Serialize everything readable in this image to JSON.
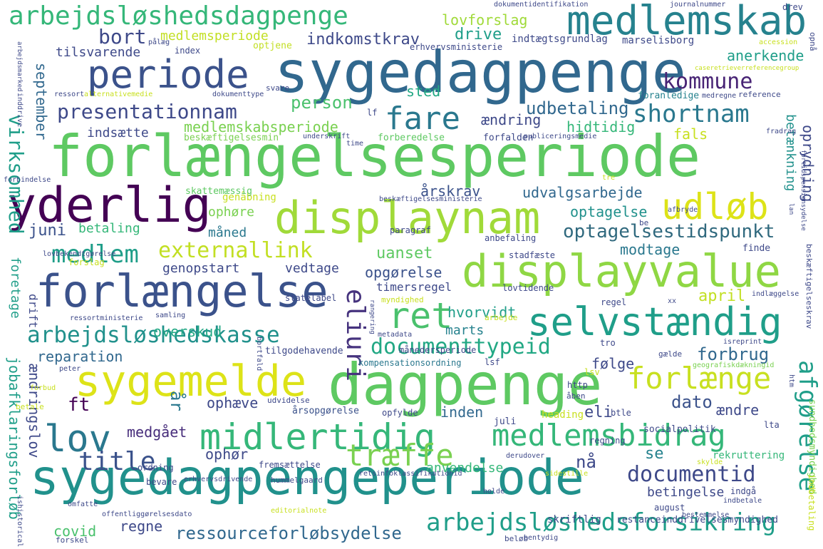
{
  "words": [
    {
      "text": "forlængelsesperiode",
      "color": "#5ec962"
    },
    {
      "text": "sygedagpenge",
      "color": "#31688e"
    },
    {
      "text": "sygedagpengeperiode",
      "color": "#21918c"
    },
    {
      "text": "dagpenge",
      "color": "#5ec962"
    },
    {
      "text": "displaynam",
      "color": "#a0da39"
    },
    {
      "text": "displayvalue",
      "color": "#8fd744"
    },
    {
      "text": "forlængelse",
      "color": "#3b528b"
    },
    {
      "text": "yderlig",
      "color": "#440154"
    },
    {
      "text": "medlemskab",
      "color": "#26828e"
    },
    {
      "text": "periode",
      "color": "#3b528b"
    },
    {
      "text": "sygemelde",
      "color": "#dde318"
    },
    {
      "text": "selvstændig",
      "color": "#1f9e89"
    },
    {
      "text": "midlertidig",
      "color": "#35b779"
    },
    {
      "text": "lov",
      "color": "#2a788e"
    },
    {
      "text": "medlemsbidrag",
      "color": "#35b779"
    },
    {
      "text": "ret",
      "color": "#4ac16d"
    },
    {
      "text": "udløb",
      "color": "#dde318"
    },
    {
      "text": "fare",
      "color": "#2a788e"
    },
    {
      "text": "arbejdsløshedsdagpenge",
      "color": "#35b779"
    },
    {
      "text": "arbejdsløshedsforsikring",
      "color": "#1f9e89"
    },
    {
      "text": "forlænge",
      "color": "#c8e020"
    },
    {
      "text": "arbejdsløshedskasse",
      "color": "#21918c"
    },
    {
      "text": "externallink",
      "color": "#c2df23"
    },
    {
      "text": "medlem",
      "color": "#1f9e89"
    },
    {
      "text": "documenttypeid",
      "color": "#22a884"
    },
    {
      "text": "kommune",
      "color": "#482475"
    },
    {
      "text": "shortnam",
      "color": "#2a788e"
    },
    {
      "text": "presentationnam",
      "color": "#3e4989"
    },
    {
      "text": "optagelsestidspunkt",
      "color": "#30697e"
    },
    {
      "text": "træffe",
      "color": "#7ad151"
    },
    {
      "text": "title",
      "color": "#3b528b"
    },
    {
      "text": "documentid",
      "color": "#3e4989"
    },
    {
      "text": "ressourceforløbsydelse",
      "color": "#31688e"
    },
    {
      "text": "eliuri",
      "color": "#46337e"
    },
    {
      "text": "afgørelse",
      "color": "#1f9e89"
    },
    {
      "text": "bort",
      "color": "#3e4989"
    },
    {
      "text": "medlemsperiode",
      "color": "#c2df23"
    },
    {
      "text": "lovforslag",
      "color": "#a0da39"
    },
    {
      "text": "indkomstkrav",
      "color": "#3e4989"
    },
    {
      "text": "drive",
      "color": "#1f9e89"
    },
    {
      "text": "tilsvarende",
      "color": "#3e4989"
    },
    {
      "text": "udbetaling",
      "color": "#31688e"
    },
    {
      "text": "person",
      "color": "#4ac16d"
    },
    {
      "text": "sted",
      "color": "#22a884"
    },
    {
      "text": "ændring",
      "color": "#3e4989"
    },
    {
      "text": "hidtidig",
      "color": "#35b779"
    },
    {
      "text": "indsætte",
      "color": "#3e4989"
    },
    {
      "text": "medlemskabsperiode",
      "color": "#7ad151"
    },
    {
      "text": "september",
      "color": "#31688e"
    },
    {
      "text": "virksomhed",
      "color": "#1f9e89"
    },
    {
      "text": "juni",
      "color": "#3b528b"
    },
    {
      "text": "betaling",
      "color": "#35b779"
    },
    {
      "text": "ophøre",
      "color": "#7ad151"
    },
    {
      "text": "måned",
      "color": "#2a788e"
    },
    {
      "text": "uanset",
      "color": "#5ec962"
    },
    {
      "text": "årskrav",
      "color": "#3b528b"
    },
    {
      "text": "udvalgsarbejde",
      "color": "#31688e"
    },
    {
      "text": "optagelse",
      "color": "#21918c"
    },
    {
      "text": "modtage",
      "color": "#2a788e"
    },
    {
      "text": "genopstart",
      "color": "#3e4989"
    },
    {
      "text": "vedtage",
      "color": "#3e4989"
    },
    {
      "text": "opgørelse",
      "color": "#3b528b"
    },
    {
      "text": "timersregel",
      "color": "#3e4989"
    },
    {
      "text": "hvorvidt",
      "color": "#1f9e89"
    },
    {
      "text": "april",
      "color": "#c2df23"
    },
    {
      "text": "marts",
      "color": "#26828e"
    },
    {
      "text": "overskud",
      "color": "#22a884"
    },
    {
      "text": "reparation",
      "color": "#31688e"
    },
    {
      "text": "forbrug",
      "color": "#31688e"
    },
    {
      "text": "følge",
      "color": "#3e4989"
    },
    {
      "text": "dato",
      "color": "#3b528b"
    },
    {
      "text": "ændre",
      "color": "#3e4989"
    },
    {
      "text": "eli",
      "color": "#3e4989"
    },
    {
      "text": "ft",
      "color": "#440154"
    },
    {
      "text": "år",
      "color": "#2a788e"
    },
    {
      "text": "ophæve",
      "color": "#3e4989"
    },
    {
      "text": "inden",
      "color": "#31688e"
    },
    {
      "text": "medgået",
      "color": "#472d7b"
    },
    {
      "text": "nå",
      "color": "#3e4989"
    },
    {
      "text": "se",
      "color": "#26828e"
    },
    {
      "text": "ophør",
      "color": "#3e4989"
    },
    {
      "text": "regne",
      "color": "#3e4989"
    },
    {
      "text": "anvendelse",
      "color": "#35b779"
    },
    {
      "text": "betingelse",
      "color": "#3e4989"
    },
    {
      "text": "covid",
      "color": "#4ac16d"
    },
    {
      "text": "fals",
      "color": "#c8e020"
    },
    {
      "text": "oprydning",
      "color": "#3e4989"
    },
    {
      "text": "betænkning",
      "color": "#21918c"
    },
    {
      "text": "anerkende",
      "color": "#1f9e89"
    },
    {
      "text": "jobafklaringsforløb",
      "color": "#1f9e89"
    },
    {
      "text": "ændringslov",
      "color": "#3e4989"
    },
    {
      "text": "foretage",
      "color": "#1f9e89"
    },
    {
      "text": "drift",
      "color": "#3e4989"
    },
    {
      "text": "genåbning",
      "color": "#c8e020"
    },
    {
      "text": "skattemæssig",
      "color": "#5ec962"
    },
    {
      "text": "beskæftigelsesmin",
      "color": "#7ad151"
    },
    {
      "text": "forberedelse",
      "color": "#5ec962"
    },
    {
      "text": "forfalden",
      "color": "#3e4989"
    },
    {
      "text": "foranledige",
      "color": "#26828e"
    },
    {
      "text": "indtægtsgrundlag",
      "color": "#3e4989"
    },
    {
      "text": "marselisborg",
      "color": "#3e4989"
    },
    {
      "text": "erhvervsministerie",
      "color": "#3e4989"
    },
    {
      "text": "optjene",
      "color": "#c2df23"
    },
    {
      "text": "index",
      "color": "#3e4989"
    },
    {
      "text": "månedersperiode",
      "color": "#3e4989"
    },
    {
      "text": "kompensationsordning",
      "color": "#2a788e"
    },
    {
      "text": "tilgodehavende",
      "color": "#3e4989"
    },
    {
      "text": "årsopgørelse",
      "color": "#3b528b"
    },
    {
      "text": "udvidelse",
      "color": "#3e4989"
    },
    {
      "text": "opfylde",
      "color": "#3e4989"
    },
    {
      "text": "juli",
      "color": "#3e4989"
    },
    {
      "text": "heading",
      "color": "#c8e020"
    },
    {
      "text": "btle",
      "color": "#3e4989"
    },
    {
      "text": "socialpolitik",
      "color": "#3e4989"
    },
    {
      "text": "regning",
      "color": "#3e4989"
    },
    {
      "text": "rekruttering",
      "color": "#35b779"
    },
    {
      "text": "ordning",
      "color": "#3e4989"
    },
    {
      "text": "bevare",
      "color": "#3e4989"
    },
    {
      "text": "fremsættelse",
      "color": "#3e4989"
    },
    {
      "text": "hummelgaard",
      "color": "#3e4989"
    },
    {
      "text": "august",
      "color": "#3e4989"
    },
    {
      "text": "indgå",
      "color": "#3e4989"
    },
    {
      "text": "skriftlig",
      "color": "#3e4989"
    },
    {
      "text": "restanceinddrivelsesmyndighed",
      "color": "#3e4989"
    },
    {
      "text": "beløb",
      "color": "#3e4989"
    },
    {
      "text": "forskel",
      "color": "#3e4989"
    },
    {
      "text": "lovtidende",
      "color": "#3e4989"
    },
    {
      "text": "paragraf",
      "color": "#3e4989"
    },
    {
      "text": "anbefaling",
      "color": "#3e4989"
    },
    {
      "text": "stadfæste",
      "color": "#3e4989"
    },
    {
      "text": "finde",
      "color": "#3e4989"
    },
    {
      "text": "regel",
      "color": "#3e4989"
    },
    {
      "text": "statelabel",
      "color": "#3e4989"
    },
    {
      "text": "myndighed",
      "color": "#c8e020"
    },
    {
      "text": "arbejde",
      "color": "#c8e020"
    },
    {
      "text": "forslag",
      "color": "#c8e020"
    },
    {
      "text": "betale",
      "color": "#c8e020"
    },
    {
      "text": "http",
      "color": "#3e4989"
    },
    {
      "text": "lsv",
      "color": "#c8e020"
    },
    {
      "text": "lta",
      "color": "#3e4989"
    },
    {
      "text": "åben",
      "color": "#3e4989"
    },
    {
      "text": "drev",
      "color": "#3e4989"
    },
    {
      "text": "svare",
      "color": "#3e4989"
    },
    {
      "text": "ressort",
      "color": "#3e4989"
    },
    {
      "text": "lf",
      "color": "#3e4989"
    },
    {
      "text": "xx",
      "color": "#3e4989"
    },
    {
      "text": "be",
      "color": "#3e4989"
    },
    {
      "text": "tro",
      "color": "#3e4989"
    },
    {
      "text": "gælde",
      "color": "#3e4989"
    },
    {
      "text": "lsf",
      "color": "#3e4989"
    },
    {
      "text": "peter",
      "color": "#3e4989"
    },
    {
      "text": "forbud",
      "color": "#c8e020"
    },
    {
      "text": "dokumentidentifikation",
      "color": "#3e4989"
    },
    {
      "text": "journalnummer",
      "color": "#3e4989"
    },
    {
      "text": "accession",
      "color": "#c8e020"
    },
    {
      "text": "pålæg",
      "color": "#3e4989"
    },
    {
      "text": "reference",
      "color": "#3e4989"
    },
    {
      "text": "medregne",
      "color": "#3e4989"
    },
    {
      "text": "fradrag",
      "color": "#3e4989"
    },
    {
      "text": "publiceringsmedie",
      "color": "#3e4989"
    },
    {
      "text": "time",
      "color": "#3e4989"
    },
    {
      "text": "afbryde",
      "color": "#3e4989"
    },
    {
      "text": "beskæftigelsesministerie",
      "color": "#3e4989"
    },
    {
      "text": "lovbekendtgørelse",
      "color": "#3e4989"
    },
    {
      "text": "samling",
      "color": "#3e4989"
    },
    {
      "text": "ressortministerie",
      "color": "#3e4989"
    },
    {
      "text": "metadata",
      "color": "#3e4989"
    },
    {
      "text": "isreprint",
      "color": "#3e4989"
    },
    {
      "text": "geografiskdækningid",
      "color": "#7ad151"
    },
    {
      "text": "indlæggelse",
      "color": "#3e4989"
    },
    {
      "text": "derudover",
      "color": "#3e4989"
    },
    {
      "text": "sidestille",
      "color": "#c8e020"
    },
    {
      "text": "skylde",
      "color": "#c8e020"
    },
    {
      "text": "holde",
      "color": "#3e4989"
    },
    {
      "text": "bestemmelse",
      "color": "#3e4989"
    },
    {
      "text": "indbetale",
      "color": "#3e4989"
    },
    {
      "text": "editorialnote",
      "color": "#c8e020"
    },
    {
      "text": "offentliggørelsesdato",
      "color": "#3e4989"
    },
    {
      "text": "omfatte",
      "color": "#3e4989"
    },
    {
      "text": "erhvervsdrivende",
      "color": "#3e4989"
    },
    {
      "text": "retsinfoklassifikationid",
      "color": "#3e4989"
    },
    {
      "text": "dokumenttype",
      "color": "#3e4989"
    },
    {
      "text": "underskrift",
      "color": "#3e4989"
    },
    {
      "text": "alternativemedie",
      "color": "#c8e020"
    },
    {
      "text": "caseretrieverreferencegroup",
      "color": "#c8e020"
    },
    {
      "text": "forbindelse",
      "color": "#3e4989"
    },
    {
      "text": "tre",
      "color": "#c8e020"
    },
    {
      "text": "sundhedsmyndighed",
      "color": "#7ad151"
    },
    {
      "text": "indbetaling",
      "color": "#c8e020"
    },
    {
      "text": "beskæftigelseskrav",
      "color": "#3e4989"
    },
    {
      "text": "inddrive",
      "color": "#3e4989"
    },
    {
      "text": "arbejdsmarked",
      "color": "#3e4989"
    },
    {
      "text": "opnå",
      "color": "#3e4989"
    },
    {
      "text": "lan",
      "color": "#3e4989"
    },
    {
      "text": "førtidspensionsydelse",
      "color": "#3e4989"
    },
    {
      "text": "htm",
      "color": "#3e4989"
    },
    {
      "text": "ishistorical",
      "color": "#3e4989"
    },
    {
      "text": "bortfald",
      "color": "#3e4989"
    },
    {
      "text": "rangering",
      "color": "#3e4989"
    },
    {
      "text": "bentydig",
      "color": "#3e4989"
    }
  ]
}
